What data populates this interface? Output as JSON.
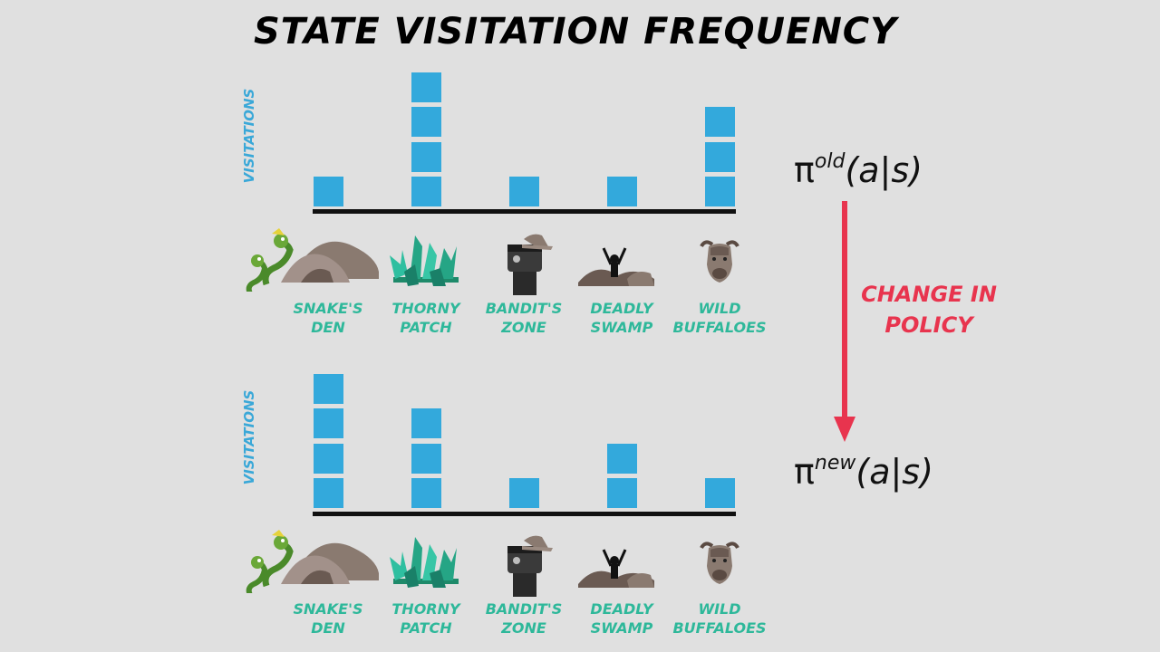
{
  "title": "STATE VISITATION FREQUENCY",
  "chart_data": [
    {
      "type": "bar",
      "ylabel": "VISITATIONS",
      "categories": [
        "SNAKE'S DEN",
        "THORNY PATCH",
        "BANDIT'S ZONE",
        "DEADLY SWAMP",
        "WILD BUFFALOES"
      ],
      "category_lines": [
        [
          "SNAKE'S",
          "DEN"
        ],
        [
          "THORNY",
          "PATCH"
        ],
        [
          "BANDIT'S",
          "ZONE"
        ],
        [
          "DEADLY",
          "SWAMP"
        ],
        [
          "WILD",
          "BUFFALOES"
        ]
      ],
      "values": [
        1,
        4,
        1,
        1,
        3
      ],
      "policy": {
        "symbol": "π",
        "superscript": "old",
        "argument": "(a|s)"
      }
    },
    {
      "type": "bar",
      "ylabel": "VISITATIONS",
      "categories": [
        "SNAKE'S DEN",
        "THORNY PATCH",
        "BANDIT'S ZONE",
        "DEADLY SWAMP",
        "WILD BUFFALOES"
      ],
      "category_lines": [
        [
          "SNAKE'S",
          "DEN"
        ],
        [
          "THORNY",
          "PATCH"
        ],
        [
          "BANDIT'S",
          "ZONE"
        ],
        [
          "DEADLY",
          "SWAMP"
        ],
        [
          "WILD",
          "BUFFALOES"
        ]
      ],
      "values": [
        4,
        3,
        1,
        2,
        1
      ],
      "policy": {
        "symbol": "π",
        "superscript": "new",
        "argument": "(a|s)"
      }
    }
  ],
  "change_label": [
    "CHANGE IN",
    "POLICY"
  ],
  "colors": {
    "bar": "#33a9dc",
    "category_text": "#2eb89a",
    "accent": "#e8344e",
    "axis": "#111111"
  },
  "icons": [
    "snake-den-icon",
    "thorny-patch-icon",
    "bandit-icon",
    "deadly-swamp-icon",
    "wild-buffalo-icon"
  ]
}
